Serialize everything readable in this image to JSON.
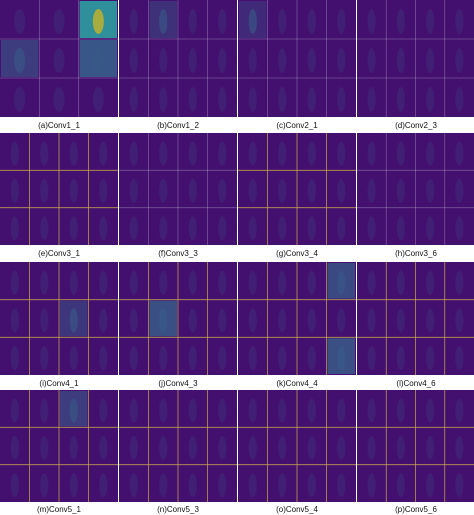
{
  "figure": {
    "colors": {
      "background": "#44106f",
      "grid_line": "#c9a84e",
      "light_line": "#d8d3e6",
      "activation_low": "#3f1c78",
      "activation_mid": "#2f8f9a",
      "activation_high": "#c9de2c"
    },
    "panels": [
      {
        "caption": "(a)Conv1_1",
        "cols": 3,
        "rows": 3
      },
      {
        "caption": "(b)Conv1_2",
        "cols": 4,
        "rows": 3
      },
      {
        "caption": "(c)Conv2_1",
        "cols": 4,
        "rows": 3
      },
      {
        "caption": "(d)Conv2_3",
        "cols": 4,
        "rows": 3
      },
      {
        "caption": "(e)Conv3_1",
        "cols": 4,
        "rows": 3
      },
      {
        "caption": "(f)Conv3_3",
        "cols": 4,
        "rows": 3
      },
      {
        "caption": "(g)Conv3_4",
        "cols": 4,
        "rows": 3
      },
      {
        "caption": "(h)Conv3_6",
        "cols": 4,
        "rows": 3
      },
      {
        "caption": "(i)Conv4_1",
        "cols": 4,
        "rows": 3
      },
      {
        "caption": "(j)Conv4_3",
        "cols": 4,
        "rows": 3
      },
      {
        "caption": "(k)Conv4_4",
        "cols": 4,
        "rows": 3
      },
      {
        "caption": "(l)Conv4_6",
        "cols": 4,
        "rows": 3
      },
      {
        "caption": "(m)Conv5_1",
        "cols": 4,
        "rows": 3
      },
      {
        "caption": "(n)Conv5_3",
        "cols": 4,
        "rows": 3
      },
      {
        "caption": "(o)Conv5_4",
        "cols": 4,
        "rows": 3
      },
      {
        "caption": "(p)Conv5_6",
        "cols": 4,
        "rows": 3
      }
    ]
  }
}
